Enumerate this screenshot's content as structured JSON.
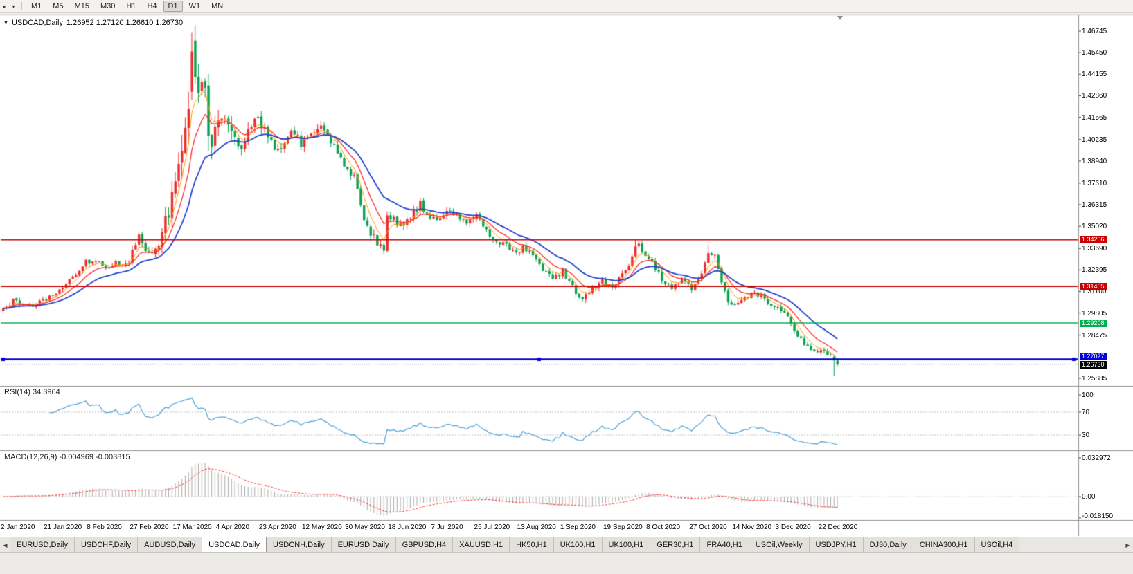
{
  "colors": {
    "bull_candle": "#ee2c2c",
    "bear_candle": "#0aa152",
    "hline_red": "#cc0000",
    "hline_green": "#00b050",
    "hline_blue": "#0000dd",
    "current_price_line": "#555555",
    "rsi_line": "#4a9fd8",
    "macd_histogram": "#a9a9a9",
    "macd_signal": "#ff3333",
    "level_dash": "#bdbdbd",
    "separator": "#8f8f8f",
    "axis_text": "#000000"
  },
  "toolbar": {
    "chart_menu_icon": "▸",
    "dropdown_icon": "▾",
    "timeframes": [
      "M1",
      "M5",
      "M15",
      "M30",
      "H1",
      "H4",
      "D1",
      "W1",
      "MN"
    ],
    "active_timeframe": "D1"
  },
  "chart": {
    "collapse_icon": "▼",
    "title_symbol": "USDCAD,Daily",
    "title_ohlc": "1.26952 1.27120 1.26610 1.26730",
    "price_axis_ticks": [
      "1.46745",
      "1.45450",
      "1.44155",
      "1.42860",
      "1.41565",
      "1.40235",
      "1.38940",
      "1.37610",
      "1.36315",
      "1.35020",
      "1.33690",
      "1.32395",
      "1.31100",
      "1.29805",
      "1.28475",
      "1.25885"
    ],
    "hlines": [
      {
        "value": 1.34206,
        "label": "1.34206",
        "color": "#cc0000",
        "width": 1.6,
        "selected": false
      },
      {
        "value": 1.31405,
        "label": "1.31405",
        "color": "#cc0000",
        "width": 1.6,
        "selected": false
      },
      {
        "value": 1.29208,
        "label": "1.29208",
        "color": "#00b050",
        "width": 1.6,
        "selected": false
      },
      {
        "value": 1.27027,
        "label": "1.27027",
        "color": "#0000dd",
        "width": 2.4,
        "selected": true
      }
    ],
    "current_price": {
      "value": 1.2673,
      "label": "1.26730",
      "tag_color": "#000000"
    },
    "date_labels": [
      "2 Jan 2020",
      "21 Jan 2020",
      "8 Feb 2020",
      "27 Feb 2020",
      "17 Mar 2020",
      "4 Apr 2020",
      "23 Apr 2020",
      "12 May 2020",
      "30 May 2020",
      "18 Jun 2020",
      "7 Jul 2020",
      "25 Jul 2020",
      "13 Aug 2020",
      "1 Sep 2020",
      "19 Sep 2020",
      "8 Oct 2020",
      "27 Oct 2020",
      "14 Nov 2020",
      "3 Dec 2020",
      "22 Dec 2020"
    ]
  },
  "rsi": {
    "label": "RSI(14) 34.3964",
    "axis_ticks": [
      {
        "value": 100,
        "label": "100"
      },
      {
        "value": 70,
        "label": "70"
      },
      {
        "value": 30,
        "label": "30"
      }
    ],
    "levels": [
      70,
      30
    ]
  },
  "macd": {
    "label": "MACD(12,26,9) -0.004969 -0.003815",
    "axis_ticks": [
      {
        "value": 0.032972,
        "label": "0.032972"
      },
      {
        "value": 0,
        "label": "0.00"
      },
      {
        "value": -0.01815,
        "label": "-0.018150"
      }
    ]
  },
  "tabs": {
    "scroll_left": "◀",
    "scroll_right": "▶",
    "items": [
      {
        "label": "EURUSD,Daily",
        "active": false
      },
      {
        "label": "USDCHF,Daily",
        "active": false
      },
      {
        "label": "AUDUSD,Daily",
        "active": false
      },
      {
        "label": "USDCAD,Daily",
        "active": true
      },
      {
        "label": "USDCNH,Daily",
        "active": false
      },
      {
        "label": "EURUSD,Daily",
        "active": false
      },
      {
        "label": "GBPUSD,H4",
        "active": false
      },
      {
        "label": "XAUUSD,H1",
        "active": false
      },
      {
        "label": "HK50,H1",
        "active": false
      },
      {
        "label": "UK100,H1",
        "active": false
      },
      {
        "label": "UK100,H1",
        "active": false
      },
      {
        "label": "GER30,H1",
        "active": false
      },
      {
        "label": "FRA40,H1",
        "active": false
      },
      {
        "label": "USOil,Weekly",
        "active": false
      },
      {
        "label": "USDJPY,H1",
        "active": false
      },
      {
        "label": "DJ30,Daily",
        "active": false
      },
      {
        "label": "CHINA300,H1",
        "active": false
      },
      {
        "label": "USOil,H4",
        "active": false
      }
    ]
  },
  "chart_data": {
    "type": "candlestick",
    "symbol": "USDCAD",
    "timeframe": "Daily",
    "visible_bar_ohlc": {
      "open": 1.26952,
      "high": 1.2712,
      "low": 1.2661,
      "close": 1.2673
    },
    "y_axis_range": [
      1.2543,
      1.477
    ],
    "y_tick_labels": [
      "1.46745",
      "1.45450",
      "1.44155",
      "1.42860",
      "1.41565",
      "1.40235",
      "1.38940",
      "1.37610",
      "1.36315",
      "1.35020",
      "1.33690",
      "1.32395",
      "1.31100",
      "1.29805",
      "1.28475",
      "1.25885"
    ],
    "x_tick_labels": [
      "2 Jan 2020",
      "21 Jan 2020",
      "8 Feb 2020",
      "27 Feb 2020",
      "17 Mar 2020",
      "4 Apr 2020",
      "23 Apr 2020",
      "12 May 2020",
      "30 May 2020",
      "18 Jun 2020",
      "7 Jul 2020",
      "25 Jul 2020",
      "13 Aug 2020",
      "1 Sep 2020",
      "19 Sep 2020",
      "8 Oct 2020",
      "27 Oct 2020",
      "14 Nov 2020",
      "3 Dec 2020",
      "22 Dec 2020"
    ],
    "x_labels_every_bars": 13,
    "bars": 253,
    "horizontal_lines": [
      1.34206,
      1.31405,
      1.29208,
      1.27027
    ],
    "current_price": 1.2673,
    "year_high": 1.4668,
    "indicators": {
      "rsi": {
        "period": 14,
        "last": 34.3964,
        "levels": [
          70,
          30
        ],
        "scale": [
          30,
          70,
          100
        ]
      },
      "macd": {
        "fast": 12,
        "slow": 26,
        "signal": 9,
        "last_main": -0.004969,
        "last_signal": -0.003815,
        "scale_max": 0.032972,
        "scale_min": -0.01815
      }
    },
    "moving_averages": [
      {
        "period": 5,
        "color": "#ff9b00",
        "width": 1.0
      },
      {
        "period": 10,
        "color": "#ff2a2a",
        "width": 1.3
      },
      {
        "period": 21,
        "color": "#2442cc",
        "width": 1.8
      }
    ],
    "price_path": [
      [
        0,
        1.2995,
        0.0045
      ],
      [
        3,
        1.3052,
        0.0045
      ],
      [
        6,
        1.3038,
        0.004
      ],
      [
        9,
        1.3028,
        0.004
      ],
      [
        13,
        1.3068,
        0.0045
      ],
      [
        16,
        1.3105,
        0.0045
      ],
      [
        19,
        1.3158,
        0.0045
      ],
      [
        22,
        1.3215,
        0.005
      ],
      [
        25,
        1.3288,
        0.005
      ],
      [
        28,
        1.3302,
        0.005
      ],
      [
        31,
        1.3248,
        0.005
      ],
      [
        34,
        1.3296,
        0.005
      ],
      [
        37,
        1.3258,
        0.0055
      ],
      [
        40,
        1.3388,
        0.007
      ],
      [
        41,
        1.3442,
        0.008
      ],
      [
        43,
        1.3375,
        0.009
      ],
      [
        45,
        1.3342,
        0.009
      ],
      [
        47,
        1.3415,
        0.011
      ],
      [
        49,
        1.3555,
        0.015
      ],
      [
        51,
        1.3668,
        0.018
      ],
      [
        53,
        1.3855,
        0.022
      ],
      [
        55,
        1.4105,
        0.027
      ],
      [
        56,
        1.4275,
        0.03
      ],
      [
        57,
        1.45,
        0.033
      ],
      [
        58,
        1.4455,
        0.03
      ],
      [
        59,
        1.4282,
        0.027
      ],
      [
        61,
        1.4388,
        0.024
      ],
      [
        62,
        1.4105,
        0.022
      ],
      [
        63,
        1.4022,
        0.019
      ],
      [
        65,
        1.4158,
        0.016
      ],
      [
        67,
        1.4188,
        0.014
      ],
      [
        69,
        1.4082,
        0.013
      ],
      [
        71,
        1.3962,
        0.012
      ],
      [
        73,
        1.4045,
        0.011
      ],
      [
        75,
        1.4112,
        0.011
      ],
      [
        77,
        1.4178,
        0.011
      ],
      [
        79,
        1.4075,
        0.01
      ],
      [
        81,
        1.3992,
        0.0095
      ],
      [
        84,
        1.3945,
        0.009
      ],
      [
        86,
        1.4032,
        0.0085
      ],
      [
        88,
        1.4072,
        0.008
      ],
      [
        90,
        1.3985,
        0.008
      ],
      [
        93,
        1.4078,
        0.0075
      ],
      [
        96,
        1.4112,
        0.0075
      ],
      [
        98,
        1.4066,
        0.007
      ],
      [
        100,
        1.3972,
        0.007
      ],
      [
        102,
        1.3912,
        0.007
      ],
      [
        104,
        1.3858,
        0.0068
      ],
      [
        106,
        1.3788,
        0.0068
      ],
      [
        108,
        1.3622,
        0.0075
      ],
      [
        110,
        1.3505,
        0.0078
      ],
      [
        112,
        1.3438,
        0.008
      ],
      [
        114,
        1.3382,
        0.0085
      ],
      [
        115,
        1.3352,
        0.0085
      ],
      [
        116,
        1.3565,
        0.009
      ],
      [
        118,
        1.3545,
        0.0075
      ],
      [
        120,
        1.3512,
        0.0068
      ],
      [
        123,
        1.3558,
        0.0062
      ],
      [
        126,
        1.3638,
        0.006
      ],
      [
        128,
        1.3572,
        0.006
      ],
      [
        131,
        1.3538,
        0.0058
      ],
      [
        134,
        1.3605,
        0.0058
      ],
      [
        137,
        1.3568,
        0.0055
      ],
      [
        140,
        1.3525,
        0.0055
      ],
      [
        143,
        1.3562,
        0.0055
      ],
      [
        146,
        1.3468,
        0.0055
      ],
      [
        149,
        1.3415,
        0.0052
      ],
      [
        152,
        1.3392,
        0.0052
      ],
      [
        155,
        1.3328,
        0.0052
      ],
      [
        157,
        1.3388,
        0.0052
      ],
      [
        160,
        1.3312,
        0.005
      ],
      [
        163,
        1.3242,
        0.005
      ],
      [
        166,
        1.3188,
        0.005
      ],
      [
        169,
        1.3232,
        0.005
      ],
      [
        171,
        1.3165,
        0.005
      ],
      [
        173,
        1.3105,
        0.005
      ],
      [
        175,
        1.3062,
        0.005
      ],
      [
        178,
        1.3132,
        0.005
      ],
      [
        181,
        1.3172,
        0.005
      ],
      [
        184,
        1.3148,
        0.005
      ],
      [
        187,
        1.3208,
        0.005
      ],
      [
        190,
        1.3312,
        0.0052
      ],
      [
        191,
        1.3396,
        0.0056
      ],
      [
        192,
        1.3378,
        0.0055
      ],
      [
        194,
        1.3332,
        0.0055
      ],
      [
        196,
        1.3285,
        0.0052
      ],
      [
        199,
        1.3178,
        0.005
      ],
      [
        202,
        1.3128,
        0.005
      ],
      [
        205,
        1.3188,
        0.005
      ],
      [
        208,
        1.3132,
        0.005
      ],
      [
        211,
        1.3235,
        0.0058
      ],
      [
        213,
        1.3322,
        0.006
      ],
      [
        215,
        1.3312,
        0.006
      ],
      [
        217,
        1.3178,
        0.006
      ],
      [
        219,
        1.3062,
        0.0055
      ],
      [
        221,
        1.3022,
        0.005
      ],
      [
        224,
        1.3082,
        0.005
      ],
      [
        227,
        1.3098,
        0.0048
      ],
      [
        230,
        1.3072,
        0.0048
      ],
      [
        233,
        1.3012,
        0.0048
      ],
      [
        236,
        1.2988,
        0.0048
      ],
      [
        239,
        1.2868,
        0.0048
      ],
      [
        242,
        1.2792,
        0.0046
      ],
      [
        245,
        1.2748,
        0.0046
      ],
      [
        247,
        1.2772,
        0.0046
      ],
      [
        249,
        1.2742,
        0.0046
      ],
      [
        250,
        1.2712,
        0.005
      ],
      [
        251,
        1.2696,
        0.006
      ],
      [
        252,
        1.2673,
        0.004
      ]
    ],
    "candle_overrides": {
      "57": {
        "o": 1.431,
        "h": 1.4668,
        "l": 1.4262,
        "c": 1.4552
      },
      "191": {
        "h": 1.3421
      },
      "192": {
        "h": 1.3415
      },
      "213": {
        "h": 1.3392
      },
      "251": {
        "o": 1.2718,
        "h": 1.2729,
        "l": 1.2604,
        "c": 1.2696
      },
      "252": {
        "o": 1.26952,
        "h": 1.2712,
        "l": 1.2661,
        "c": 1.2673
      }
    }
  }
}
